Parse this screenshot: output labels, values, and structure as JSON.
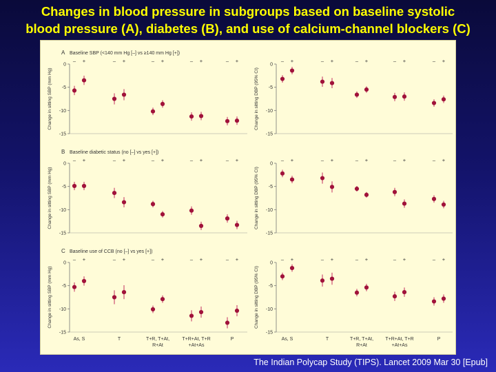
{
  "slide": {
    "title_line1": "Changes in blood pressure in subgroups based on baseline systolic",
    "title_line2": "blood pressure (A), diabetes (B), and use of calcium-channel blockers (C)",
    "citation": "The Indian Polycap Study (TIPS). Lancet 2009 Mar 30 [Epub]",
    "colors": {
      "title": "#ffff00",
      "panel_bg": "#fffcd8",
      "marker": "#a0123a",
      "error_bar": "#c8406a"
    }
  },
  "chart_data": {
    "type": "scatter",
    "categories": [
      "As, S",
      "T",
      "T+R, T+At, R+At",
      "T+R+At, T+R +At+As",
      "P"
    ],
    "category_labels": [
      [
        "As, S"
      ],
      [
        "T"
      ],
      [
        "T+R, T+At,",
        "R+At"
      ],
      [
        "T+R+At, T+R",
        "+At+As"
      ],
      [
        "P"
      ]
    ],
    "group_symbols": [
      "–",
      "+"
    ],
    "ylim": [
      -15,
      0
    ],
    "yticks": [
      0,
      -5,
      -10,
      -15
    ],
    "ylabels": {
      "sbp": "Change in sitting SBP (mm Hg)",
      "dbp": "Change in sitting DBP (95% CI)"
    },
    "rows": [
      {
        "letter": "A",
        "title": "Baseline SBP (<140 mm Hg [–] vs ≥140 mm Hg [+])",
        "sbp": [
          {
            "minus": -5.7,
            "plus": -3.5,
            "err": 1.0
          },
          {
            "minus": -7.5,
            "plus": -6.6,
            "err": 1.2
          },
          {
            "minus": -10.2,
            "plus": -8.6,
            "err": 0.8
          },
          {
            "minus": -11.3,
            "plus": -11.2,
            "err": 0.9
          },
          {
            "minus": -12.3,
            "plus": -12.2,
            "err": 0.9
          }
        ],
        "dbp": [
          {
            "minus": -3.2,
            "plus": -1.4,
            "err": 0.8
          },
          {
            "minus": -3.8,
            "plus": -4.1,
            "err": 1.1
          },
          {
            "minus": -6.6,
            "plus": -5.5,
            "err": 0.7
          },
          {
            "minus": -7.1,
            "plus": -7.0,
            "err": 0.9
          },
          {
            "minus": -8.4,
            "plus": -7.6,
            "err": 0.8
          }
        ]
      },
      {
        "letter": "B",
        "title": "Baseline diabetic status (no [–] vs yes [+])",
        "sbp": [
          {
            "minus": -4.9,
            "plus": -4.9,
            "err": 0.9
          },
          {
            "minus": -6.4,
            "plus": -8.4,
            "err": 1.1
          },
          {
            "minus": -8.8,
            "plus": -11.0,
            "err": 0.7
          },
          {
            "minus": -10.2,
            "plus": -13.5,
            "err": 0.9
          },
          {
            "minus": -11.9,
            "plus": -13.3,
            "err": 0.9
          }
        ],
        "dbp": [
          {
            "minus": -2.2,
            "plus": -3.5,
            "err": 0.8
          },
          {
            "minus": -3.2,
            "plus": -5.1,
            "err": 1.2
          },
          {
            "minus": -5.5,
            "plus": -6.8,
            "err": 0.6
          },
          {
            "minus": -6.2,
            "plus": -8.7,
            "err": 0.9
          },
          {
            "minus": -7.7,
            "plus": -8.9,
            "err": 0.8
          }
        ]
      },
      {
        "letter": "C",
        "title": "Baseline use of CCB (no [–] vs yes [+])",
        "sbp": [
          {
            "minus": -5.3,
            "plus": -4.0,
            "err": 1.0
          },
          {
            "minus": -7.5,
            "plus": -6.4,
            "err": 1.5
          },
          {
            "minus": -10.1,
            "plus": -7.9,
            "err": 0.8
          },
          {
            "minus": -11.5,
            "plus": -10.7,
            "err": 1.2
          },
          {
            "minus": -13.0,
            "plus": -10.4,
            "err": 1.2
          }
        ],
        "dbp": [
          {
            "minus": -3.0,
            "plus": -1.2,
            "err": 0.8
          },
          {
            "minus": -3.9,
            "plus": -3.5,
            "err": 1.3
          },
          {
            "minus": -6.5,
            "plus": -5.4,
            "err": 0.8
          },
          {
            "minus": -7.3,
            "plus": -6.4,
            "err": 1.0
          },
          {
            "minus": -8.4,
            "plus": -7.8,
            "err": 0.9
          }
        ]
      }
    ]
  }
}
